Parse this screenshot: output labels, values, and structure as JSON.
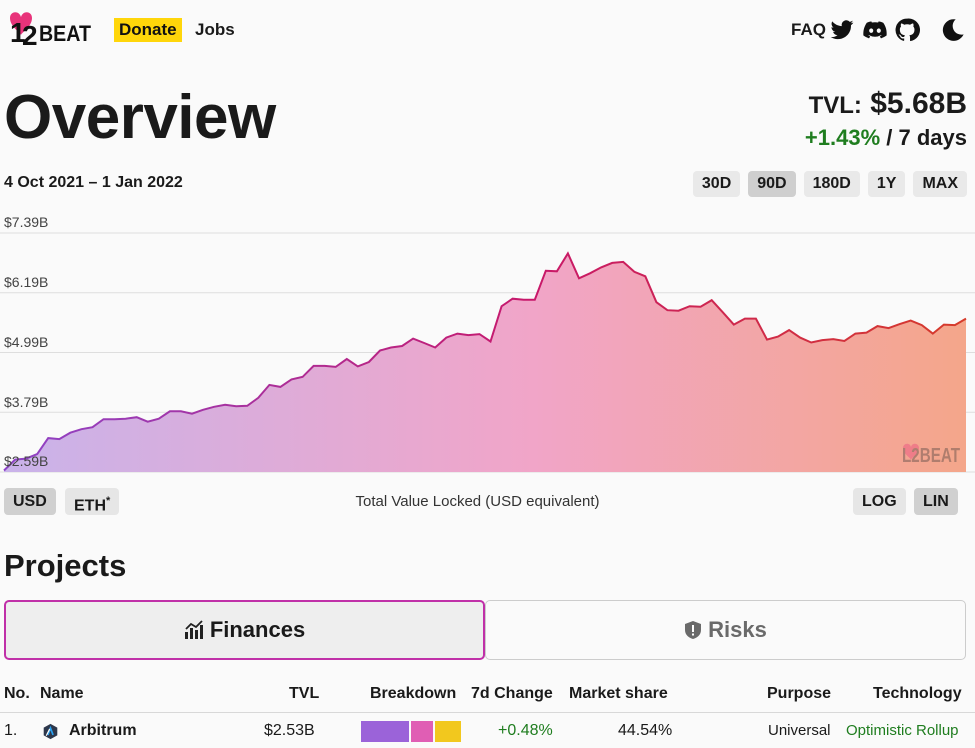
{
  "header": {
    "logo_text": "L2BEAT",
    "donate": "Donate",
    "jobs": "Jobs",
    "faq": "FAQ",
    "icons": [
      "twitter-icon",
      "discord-icon",
      "github-icon",
      "dark-mode-icon"
    ]
  },
  "overview": {
    "title": "Overview",
    "tvl_label": "TVL:",
    "tvl_value": "$5.68B",
    "change": "+1.43%",
    "change_period": " / 7 days",
    "date_range": "4 Oct 2021 – 1 Jan 2022",
    "range_buttons": [
      "30D",
      "90D",
      "180D",
      "1Y",
      "MAX"
    ],
    "active_range": "90D"
  },
  "chart_data": {
    "type": "area",
    "y_tick_labels": [
      "$7.39B",
      "$6.19B",
      "$4.99B",
      "$3.79B",
      "$2.59B"
    ],
    "ylim": [
      2.59,
      7.39
    ],
    "x_range": [
      "4 Oct 2021",
      "1 Jan 2022"
    ],
    "values": [
      2.62,
      2.84,
      2.86,
      2.95,
      3.27,
      3.25,
      3.38,
      3.45,
      3.49,
      3.65,
      3.65,
      3.66,
      3.69,
      3.6,
      3.66,
      3.81,
      3.81,
      3.76,
      3.84,
      3.9,
      3.94,
      3.91,
      3.92,
      4.08,
      4.34,
      4.3,
      4.45,
      4.5,
      4.72,
      4.72,
      4.7,
      4.86,
      4.71,
      4.8,
      5.03,
      5.09,
      5.12,
      5.27,
      5.18,
      5.09,
      5.29,
      5.37,
      5.34,
      5.36,
      5.21,
      5.92,
      6.07,
      6.05,
      6.05,
      6.63,
      6.62,
      6.98,
      6.48,
      6.58,
      6.7,
      6.79,
      6.81,
      6.61,
      6.52,
      6.0,
      5.84,
      5.83,
      5.92,
      5.91,
      6.04,
      5.8,
      5.55,
      5.67,
      5.67,
      5.25,
      5.31,
      5.44,
      5.29,
      5.19,
      5.24,
      5.26,
      5.22,
      5.37,
      5.39,
      5.52,
      5.48,
      5.56,
      5.63,
      5.54,
      5.37,
      5.55,
      5.54,
      5.67
    ],
    "gradient_colors": [
      "#c9b3ea",
      "#f1a5c8",
      "#f4a68a"
    ],
    "line_colors": [
      "#8e44c8",
      "#c8186a",
      "#d63b2a"
    ],
    "watermark": "L2BEAT",
    "caption": "Total Value Locked (USD equivalent)"
  },
  "chart_controls": {
    "usd": "USD",
    "eth": "ETH",
    "eth_mark": "*",
    "log": "LOG",
    "lin": "LIN",
    "active_scale": "LIN"
  },
  "projects": {
    "title": "Projects",
    "tab_finances": "Finances",
    "tab_risks": "Risks",
    "columns": [
      "No.",
      "Name",
      "TVL",
      "Breakdown",
      "7d Change",
      "Market share",
      "Purpose",
      "Technology"
    ],
    "rows": [
      {
        "no": "1.",
        "name": "Arbitrum",
        "tvl": "$2.53B",
        "breakdown_colors": [
          "#9b63d9",
          "#e05eb4",
          "#f2c81e"
        ],
        "breakdown_shares": [
          0.48,
          0.22,
          0.26
        ],
        "change_7d": "+0.48%",
        "market_share": "44.54%",
        "purpose": "Universal",
        "technology": "Optimistic Rollup"
      }
    ]
  }
}
